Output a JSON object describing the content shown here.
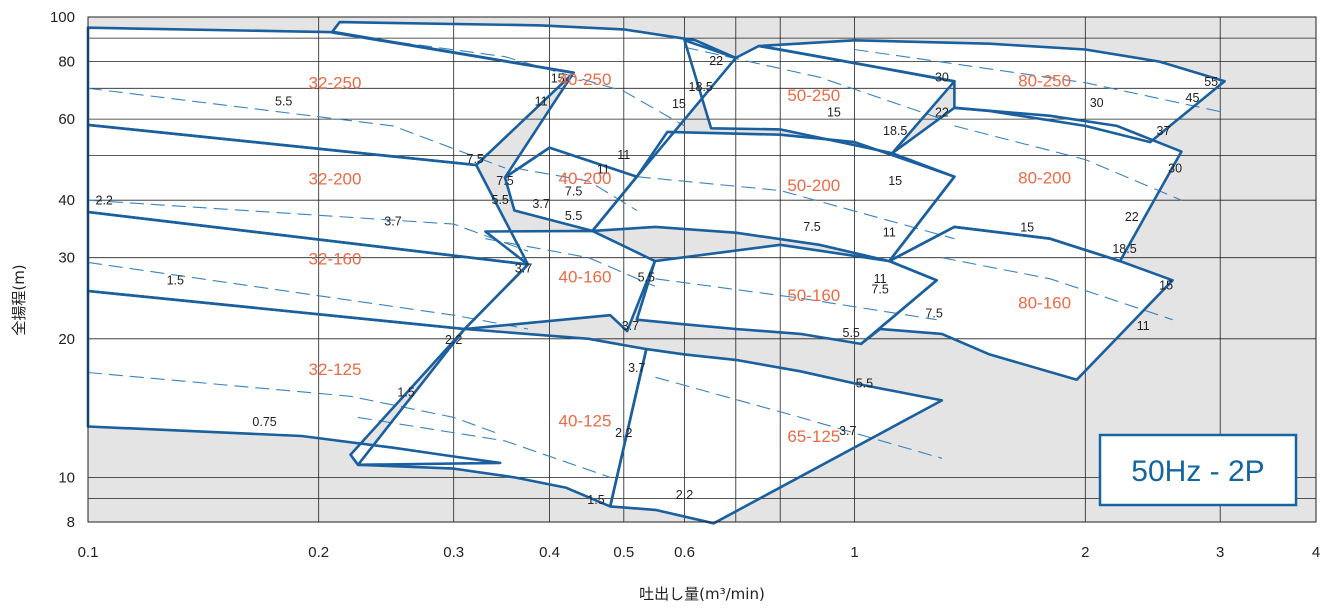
{
  "chart_data": {
    "type": "line",
    "title": "",
    "xlabel": "吐出し量(m³/min)",
    "ylabel": "全揚程(m)",
    "x_scale": "log",
    "y_scale": "log",
    "xlim": [
      0.1,
      4
    ],
    "ylim": [
      8,
      100
    ],
    "x_ticks": [
      0.1,
      0.2,
      0.3,
      0.4,
      0.5,
      0.6,
      1,
      2,
      3,
      4
    ],
    "x_tick_labels": [
      "0.1",
      "0.2",
      "0.3",
      "0.4",
      "0.5",
      "0.6",
      "1",
      "2",
      "3",
      "4"
    ],
    "y_ticks": [
      8,
      10,
      20,
      30,
      40,
      60,
      80,
      100
    ],
    "y_tick_labels": [
      "8",
      "10",
      "20",
      "30",
      "40",
      "60",
      "80",
      "100"
    ],
    "minor_x_grid": [
      0.7,
      0.8
    ],
    "minor_y_grid": [
      9,
      50,
      70,
      90
    ],
    "grid": true,
    "badge": "50Hz - 2P",
    "colors": {
      "outside": "#e4e4e4",
      "inside": "#ffffff",
      "boundary": "#1a5f9e",
      "dashed": "#3b83c0",
      "model_label": "#ec6a45",
      "grid": "#222222"
    },
    "regions": [
      {
        "name": "32-125",
        "label_x": 0.21,
        "label_y": 17.2,
        "polygon": [
          [
            0.1,
            12.9
          ],
          [
            0.19,
            12.3
          ],
          [
            0.25,
            11.6
          ],
          [
            0.3,
            11.1
          ],
          [
            0.345,
            10.75
          ],
          [
            0.225,
            10.65
          ],
          [
            0.22,
            11.2
          ],
          [
            0.31,
            21.0
          ],
          [
            0.1,
            25.4
          ]
        ]
      },
      {
        "name": "32-160",
        "label_x": 0.21,
        "label_y": 29.9,
        "polygon": [
          [
            0.1,
            25.4
          ],
          [
            0.31,
            21.0
          ],
          [
            0.375,
            29.0
          ],
          [
            0.1,
            37.7
          ]
        ]
      },
      {
        "name": "32-200",
        "label_x": 0.21,
        "label_y": 44.6,
        "polygon": [
          [
            0.1,
            37.7
          ],
          [
            0.375,
            29.0
          ],
          [
            0.321,
            47.7
          ],
          [
            0.1,
            58.3
          ]
        ]
      },
      {
        "name": "32-250",
        "label_x": 0.21,
        "label_y": 72.1,
        "polygon": [
          [
            0.1,
            58.3
          ],
          [
            0.321,
            47.7
          ],
          [
            0.43,
            75.7
          ],
          [
            0.21,
            92.7
          ],
          [
            0.1,
            94.8
          ]
        ]
      },
      {
        "name": "40-250",
        "label_x": 0.445,
        "label_y": 73.4,
        "polygon": [
          [
            0.208,
            92.6
          ],
          [
            0.213,
            97.5
          ],
          [
            0.39,
            95.9
          ],
          [
            0.5,
            94.0
          ],
          [
            0.62,
            89.0
          ],
          [
            0.7,
            81.5
          ],
          [
            0.52,
            45.0
          ],
          [
            0.4,
            52.0
          ],
          [
            0.35,
            44.8
          ],
          [
            0.43,
            75.7
          ]
        ]
      },
      {
        "name": "40-200",
        "label_x": 0.445,
        "label_y": 44.7,
        "polygon": [
          [
            0.35,
            44.8
          ],
          [
            0.4,
            52.0
          ],
          [
            0.52,
            45.0
          ],
          [
            0.455,
            34.3
          ],
          [
            0.36,
            38.0
          ]
        ]
      },
      {
        "name": "40-160",
        "label_x": 0.445,
        "label_y": 27.3,
        "polygon": [
          [
            0.33,
            34.2
          ],
          [
            0.455,
            34.3
          ],
          [
            0.549,
            29.5
          ],
          [
            0.505,
            20.8
          ],
          [
            0.48,
            22.5
          ],
          [
            0.31,
            21.0
          ],
          [
            0.375,
            29.0
          ]
        ]
      },
      {
        "name": "40-125",
        "label_x": 0.445,
        "label_y": 13.3,
        "polygon": [
          [
            0.225,
            10.65
          ],
          [
            0.3,
            10.45
          ],
          [
            0.36,
            10.0
          ],
          [
            0.42,
            9.5
          ],
          [
            0.48,
            8.65
          ],
          [
            0.535,
            19.0
          ],
          [
            0.45,
            20.0
          ],
          [
            0.31,
            21.0
          ]
        ]
      },
      {
        "name": "50-250",
        "label_x": 0.885,
        "label_y": 67.7,
        "polygon": [
          [
            0.6,
            89.0
          ],
          [
            0.7,
            81.5
          ],
          [
            0.75,
            86.5
          ],
          [
            0.8,
            85.0
          ],
          [
            0.9,
            82.0
          ],
          [
            1.35,
            72.5
          ],
          [
            1.12,
            50.6
          ],
          [
            0.8,
            57.0
          ],
          [
            0.65,
            57.3
          ]
        ]
      },
      {
        "name": "50-200",
        "label_x": 0.885,
        "label_y": 43.2,
        "polygon": [
          [
            0.455,
            34.3
          ],
          [
            0.52,
            45.0
          ],
          [
            0.57,
            56.3
          ],
          [
            0.8,
            55.5
          ],
          [
            1.0,
            53.5
          ],
          [
            1.35,
            45.0
          ],
          [
            1.11,
            29.5
          ],
          [
            0.9,
            32.0
          ],
          [
            0.7,
            34.0
          ],
          [
            0.55,
            35.0
          ]
        ]
      },
      {
        "name": "50-160",
        "label_x": 0.885,
        "label_y": 24.9,
        "polygon": [
          [
            0.549,
            29.5
          ],
          [
            0.52,
            22.0
          ],
          [
            0.6,
            21.5
          ],
          [
            0.7,
            21.0
          ],
          [
            0.85,
            20.5
          ],
          [
            1.02,
            19.5
          ],
          [
            1.28,
            26.8
          ],
          [
            1.11,
            29.5
          ],
          [
            0.8,
            32.0
          ]
        ]
      },
      {
        "name": "65-125",
        "label_x": 0.885,
        "label_y": 12.3,
        "polygon": [
          [
            0.48,
            8.65
          ],
          [
            0.535,
            19.0
          ],
          [
            0.6,
            18.5
          ],
          [
            0.7,
            18.0
          ],
          [
            0.85,
            17.0
          ],
          [
            1.0,
            16.0
          ],
          [
            1.3,
            14.7
          ],
          [
            0.655,
            7.95
          ],
          [
            0.55,
            8.5
          ]
        ]
      },
      {
        "name": "80-250",
        "label_x": 1.77,
        "label_y": 72.7,
        "polygon": [
          [
            0.75,
            86.5
          ],
          [
            1.0,
            89.0
          ],
          [
            1.5,
            87.5
          ],
          [
            2.0,
            85.0
          ],
          [
            2.5,
            80.0
          ],
          [
            3.04,
            72.5
          ],
          [
            2.43,
            53.5
          ],
          [
            2.0,
            58.0
          ],
          [
            1.5,
            62.5
          ],
          [
            1.35,
            63.5
          ],
          [
            1.35,
            72.5
          ],
          [
            0.9,
            82.0
          ]
        ]
      },
      {
        "name": "80-200",
        "label_x": 1.77,
        "label_y": 44.8,
        "polygon": [
          [
            1.12,
            50.6
          ],
          [
            1.35,
            63.5
          ],
          [
            1.8,
            61.0
          ],
          [
            2.2,
            58.0
          ],
          [
            2.67,
            51.0
          ],
          [
            2.22,
            29.5
          ],
          [
            1.8,
            33.0
          ],
          [
            1.35,
            35.0
          ],
          [
            1.11,
            29.5
          ],
          [
            1.35,
            45.0
          ]
        ]
      },
      {
        "name": "80-160",
        "label_x": 1.77,
        "label_y": 24.0,
        "polygon": [
          [
            1.02,
            19.5
          ],
          [
            1.28,
            26.8
          ],
          [
            1.11,
            29.5
          ],
          [
            1.35,
            35.0
          ],
          [
            1.8,
            33.0
          ],
          [
            2.22,
            29.5
          ],
          [
            2.6,
            26.8
          ],
          [
            1.95,
            16.3
          ],
          [
            1.5,
            18.5
          ],
          [
            1.3,
            20.5
          ],
          [
            1.08,
            21.0
          ]
        ]
      }
    ],
    "dashed_lines": [
      {
        "points": [
          [
            0.1,
            16.9
          ],
          [
            0.22,
            15.0
          ],
          [
            0.3,
            13.5
          ],
          [
            0.345,
            12.4
          ]
        ]
      },
      {
        "points": [
          [
            0.1,
            29.3
          ],
          [
            0.3,
            22.5
          ],
          [
            0.375,
            21.0
          ]
        ]
      },
      {
        "points": [
          [
            0.1,
            40.0
          ],
          [
            0.3,
            35.5
          ],
          [
            0.375,
            31.0
          ]
        ]
      },
      {
        "points": [
          [
            0.1,
            70.0
          ],
          [
            0.25,
            58.0
          ],
          [
            0.35,
            47.0
          ]
        ]
      },
      {
        "points": [
          [
            0.21,
            92.0
          ],
          [
            0.35,
            82.0
          ],
          [
            0.5,
            69.0
          ],
          [
            0.6,
            58.0
          ]
        ]
      },
      {
        "points": [
          [
            0.36,
            47.0
          ],
          [
            0.45,
            44.0
          ],
          [
            0.52,
            38.0
          ]
        ]
      },
      {
        "points": [
          [
            0.33,
            33.0
          ],
          [
            0.45,
            30.0
          ],
          [
            0.549,
            26.0
          ]
        ]
      },
      {
        "points": [
          [
            0.225,
            13.5
          ],
          [
            0.35,
            12.0
          ],
          [
            0.48,
            10.0
          ]
        ]
      },
      {
        "points": [
          [
            0.6,
            86.0
          ],
          [
            0.9,
            74.0
          ],
          [
            1.3,
            60.0
          ]
        ]
      },
      {
        "points": [
          [
            0.52,
            45.0
          ],
          [
            0.8,
            42.0
          ],
          [
            1.35,
            33.0
          ]
        ]
      },
      {
        "points": [
          [
            0.55,
            27.0
          ],
          [
            0.85,
            24.5
          ],
          [
            1.28,
            22.0
          ]
        ]
      },
      {
        "points": [
          [
            0.55,
            16.5
          ],
          [
            0.85,
            13.5
          ],
          [
            1.3,
            11.0
          ]
        ]
      },
      {
        "points": [
          [
            1.0,
            85.0
          ],
          [
            2.0,
            72.0
          ],
          [
            3.04,
            62.0
          ]
        ]
      },
      {
        "points": [
          [
            1.35,
            58.0
          ],
          [
            2.0,
            49.0
          ],
          [
            2.67,
            40.0
          ]
        ]
      },
      {
        "points": [
          [
            1.3,
            30.0
          ],
          [
            1.8,
            27.0
          ],
          [
            2.6,
            22.0
          ]
        ]
      }
    ],
    "kw_labels": [
      {
        "text": "0.75",
        "x": 0.17,
        "y": 13.2
      },
      {
        "text": "1.5",
        "x": 0.26,
        "y": 15.3
      },
      {
        "text": "2.2",
        "x": 0.3,
        "y": 19.9
      },
      {
        "text": "1.5",
        "x": 0.13,
        "y": 26.8
      },
      {
        "text": "3.7",
        "x": 0.37,
        "y": 28.4
      },
      {
        "text": "3.7",
        "x": 0.25,
        "y": 36.0
      },
      {
        "text": "2.2",
        "x": 0.105,
        "y": 39.9
      },
      {
        "text": "7.5",
        "x": 0.32,
        "y": 49.2
      },
      {
        "text": "5.5",
        "x": 0.18,
        "y": 65.5
      },
      {
        "text": "7.5",
        "x": 0.35,
        "y": 44.0
      },
      {
        "text": "5.5",
        "x": 0.345,
        "y": 40.0
      },
      {
        "text": "3.7",
        "x": 0.39,
        "y": 39.2
      },
      {
        "text": "11",
        "x": 0.39,
        "y": 65.6
      },
      {
        "text": "15",
        "x": 0.41,
        "y": 73.5
      },
      {
        "text": "22",
        "x": 0.66,
        "y": 80.2
      },
      {
        "text": "18.5",
        "x": 0.63,
        "y": 70.5
      },
      {
        "text": "15",
        "x": 0.59,
        "y": 64.7
      },
      {
        "text": "11",
        "x": 0.5,
        "y": 50.1
      },
      {
        "text": "11",
        "x": 0.47,
        "y": 46.6
      },
      {
        "text": "7.5",
        "x": 0.43,
        "y": 41.8
      },
      {
        "text": "5.5",
        "x": 0.43,
        "y": 37.0
      },
      {
        "text": "5.5",
        "x": 0.535,
        "y": 27.2
      },
      {
        "text": "3.7",
        "x": 0.51,
        "y": 21.3
      },
      {
        "text": "3.7",
        "x": 0.52,
        "y": 17.3
      },
      {
        "text": "2.2",
        "x": 0.5,
        "y": 12.5
      },
      {
        "text": "1.5",
        "x": 0.46,
        "y": 8.92
      },
      {
        "text": "2.2",
        "x": 0.6,
        "y": 9.15
      },
      {
        "text": "3.7",
        "x": 0.98,
        "y": 12.6
      },
      {
        "text": "5.5",
        "x": 1.03,
        "y": 16.0
      },
      {
        "text": "5.5",
        "x": 0.99,
        "y": 20.6
      },
      {
        "text": "7.5",
        "x": 1.08,
        "y": 25.6
      },
      {
        "text": "11",
        "x": 1.08,
        "y": 27.0
      },
      {
        "text": "7.5",
        "x": 1.27,
        "y": 22.7
      },
      {
        "text": "11",
        "x": 1.11,
        "y": 34.0
      },
      {
        "text": "15",
        "x": 1.13,
        "y": 44.0
      },
      {
        "text": "18.5",
        "x": 1.13,
        "y": 56.6
      },
      {
        "text": "22",
        "x": 1.3,
        "y": 62.0
      },
      {
        "text": "30",
        "x": 1.3,
        "y": 73.8
      },
      {
        "text": "15",
        "x": 0.94,
        "y": 62.0
      },
      {
        "text": "7.5",
        "x": 0.88,
        "y": 35.0
      },
      {
        "text": "15",
        "x": 1.68,
        "y": 34.9
      },
      {
        "text": "11",
        "x": 2.38,
        "y": 21.3
      },
      {
        "text": "15",
        "x": 2.55,
        "y": 26.1
      },
      {
        "text": "18.5",
        "x": 2.25,
        "y": 31.3
      },
      {
        "text": "22",
        "x": 2.3,
        "y": 36.8
      },
      {
        "text": "30",
        "x": 2.62,
        "y": 46.9
      },
      {
        "text": "37",
        "x": 2.53,
        "y": 56.5
      },
      {
        "text": "30",
        "x": 2.07,
        "y": 65.1
      },
      {
        "text": "45",
        "x": 2.76,
        "y": 66.7
      },
      {
        "text": "55",
        "x": 2.92,
        "y": 72.2
      }
    ]
  }
}
